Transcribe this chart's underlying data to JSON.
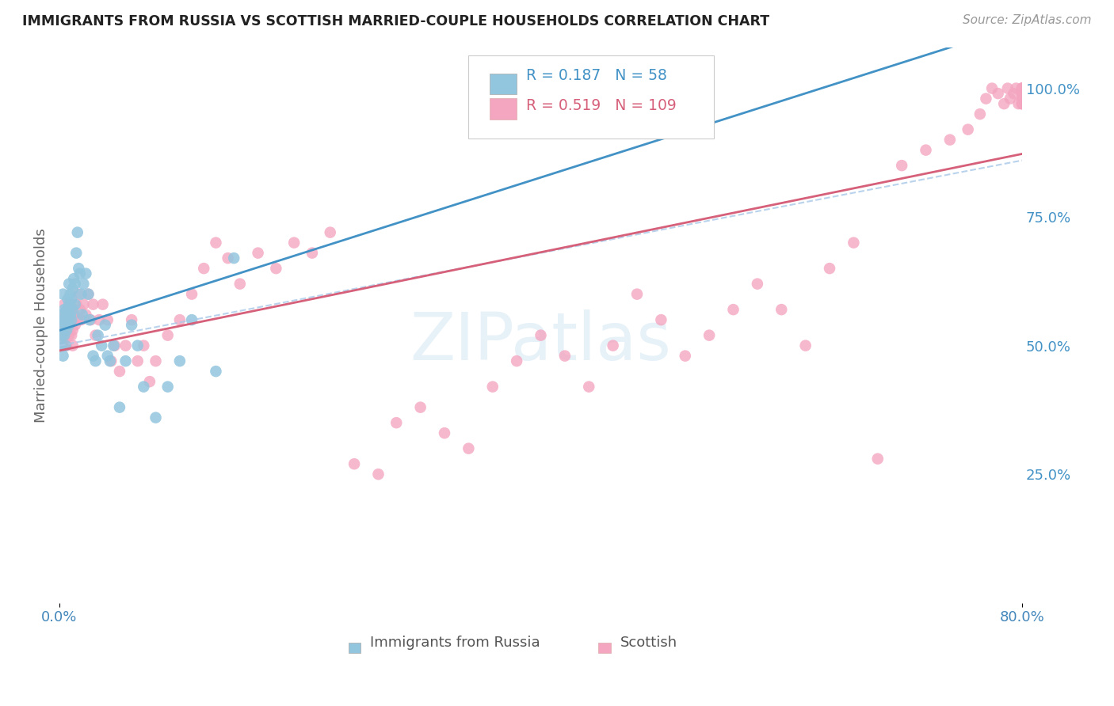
{
  "title": "IMMIGRANTS FROM RUSSIA VS SCOTTISH MARRIED-COUPLE HOUSEHOLDS CORRELATION CHART",
  "source": "Source: ZipAtlas.com",
  "ylabel": "Married-couple Households",
  "x_tick_labels": [
    "0.0%",
    "80.0%"
  ],
  "y_tick_labels_right": [
    "25.0%",
    "50.0%",
    "75.0%",
    "100.0%"
  ],
  "legend_label1": "Immigrants from Russia",
  "legend_label2": "Scottish",
  "R1": 0.187,
  "N1": 58,
  "R2": 0.519,
  "N2": 109,
  "color_blue": "#92c5de",
  "color_pink": "#f4a6c0",
  "color_blue_text": "#4292c6",
  "color_pink_text": "#d6607a",
  "background_color": "#ffffff",
  "xlim": [
    0.0,
    0.8
  ],
  "ylim": [
    0.0,
    1.08
  ],
  "blue_line": [
    0.0,
    0.5,
    0.8,
    0.8
  ],
  "pink_line": [
    0.0,
    0.46,
    0.8,
    0.88
  ],
  "dash_line": [
    0.28,
    0.65,
    0.8,
    0.86
  ]
}
